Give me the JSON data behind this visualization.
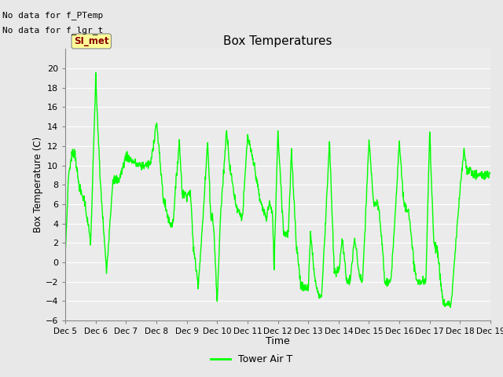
{
  "title": "Box Temperatures",
  "ylabel": "Box Temperature (C)",
  "xlabel": "Time",
  "ylim": [
    -6,
    22
  ],
  "yticks": [
    -6,
    -4,
    -2,
    0,
    2,
    4,
    6,
    8,
    10,
    12,
    14,
    16,
    18,
    20
  ],
  "line_color": "#00FF00",
  "line_width": 1.0,
  "bg_color": "#E8E8E8",
  "plot_bg_color": "#EBEBEB",
  "no_data_text1": "No data for f_PTemp",
  "no_data_text2": "No data for f_lgr_t",
  "si_met_label": "SI_met",
  "legend_label": "Tower Air T",
  "x_tick_labels": [
    "Dec 5",
    "Dec 6",
    "Dec 7",
    "Dec 8",
    "Dec 9",
    "Dec 10",
    "Dec 11",
    "Dec 12",
    "Dec 13",
    "Dec 14",
    "Dec 15",
    "Dec 16",
    "Dec 17",
    "Dec 18",
    "Dec 19"
  ],
  "x_tick_positions": [
    0,
    96,
    192,
    288,
    384,
    480,
    576,
    672,
    768,
    864,
    960,
    1056,
    1152,
    1248,
    1344
  ],
  "n_total": 1344,
  "waypoints_x": [
    0,
    10,
    20,
    30,
    40,
    50,
    60,
    80,
    96,
    110,
    130,
    150,
    170,
    192,
    210,
    230,
    250,
    270,
    288,
    310,
    330,
    340,
    360,
    370,
    384,
    395,
    405,
    420,
    435,
    450,
    460,
    465,
    470,
    480,
    490,
    510,
    520,
    540,
    560,
    576,
    600,
    615,
    625,
    635,
    645,
    655,
    660,
    672,
    690,
    705,
    715,
    730,
    745,
    755,
    768,
    775,
    790,
    800,
    810,
    820,
    835,
    850,
    864,
    875,
    890,
    900,
    915,
    930,
    940,
    960,
    975,
    990,
    1000,
    1010,
    1020,
    1030,
    1056,
    1070,
    1085,
    1095,
    1110,
    1120,
    1130,
    1140,
    1152,
    1165,
    1175,
    1185,
    1195,
    1210,
    1220,
    1248,
    1260,
    1270,
    1280,
    1295,
    1310,
    1325,
    1343
  ],
  "waypoints_y": [
    1.0,
    9.0,
    11.0,
    11.5,
    8.5,
    7.0,
    6.5,
    2.0,
    19.0,
    8.5,
    -1.0,
    8.5,
    8.5,
    11.0,
    10.5,
    10.0,
    10.0,
    10.2,
    14.5,
    6.5,
    4.0,
    4.0,
    12.5,
    7.0,
    7.0,
    7.2,
    1.5,
    -2.3,
    4.5,
    12.5,
    4.5,
    4.8,
    3.0,
    -4.3,
    4.5,
    13.8,
    9.8,
    5.8,
    4.6,
    13.0,
    9.5,
    6.4,
    5.5,
    4.5,
    6.2,
    4.8,
    -0.5,
    13.5,
    3.0,
    3.0,
    11.5,
    2.0,
    -2.5,
    -2.7,
    -2.7,
    3.0,
    -2.0,
    -3.3,
    -3.5,
    2.5,
    12.5,
    -1.0,
    -1.0,
    2.5,
    -2.0,
    -2.0,
    2.5,
    -1.5,
    -2.0,
    12.5,
    6.0,
    5.8,
    2.5,
    -2.0,
    -2.0,
    -2.0,
    12.5,
    6.0,
    5.5,
    2.0,
    -2.0,
    -2.0,
    -2.0,
    -2.0,
    13.5,
    2.0,
    1.5,
    -1.5,
    -4.3,
    -4.3,
    -4.3,
    7.5,
    11.5,
    9.5,
    9.5,
    9.0,
    9.0,
    9.0,
    9.0
  ]
}
